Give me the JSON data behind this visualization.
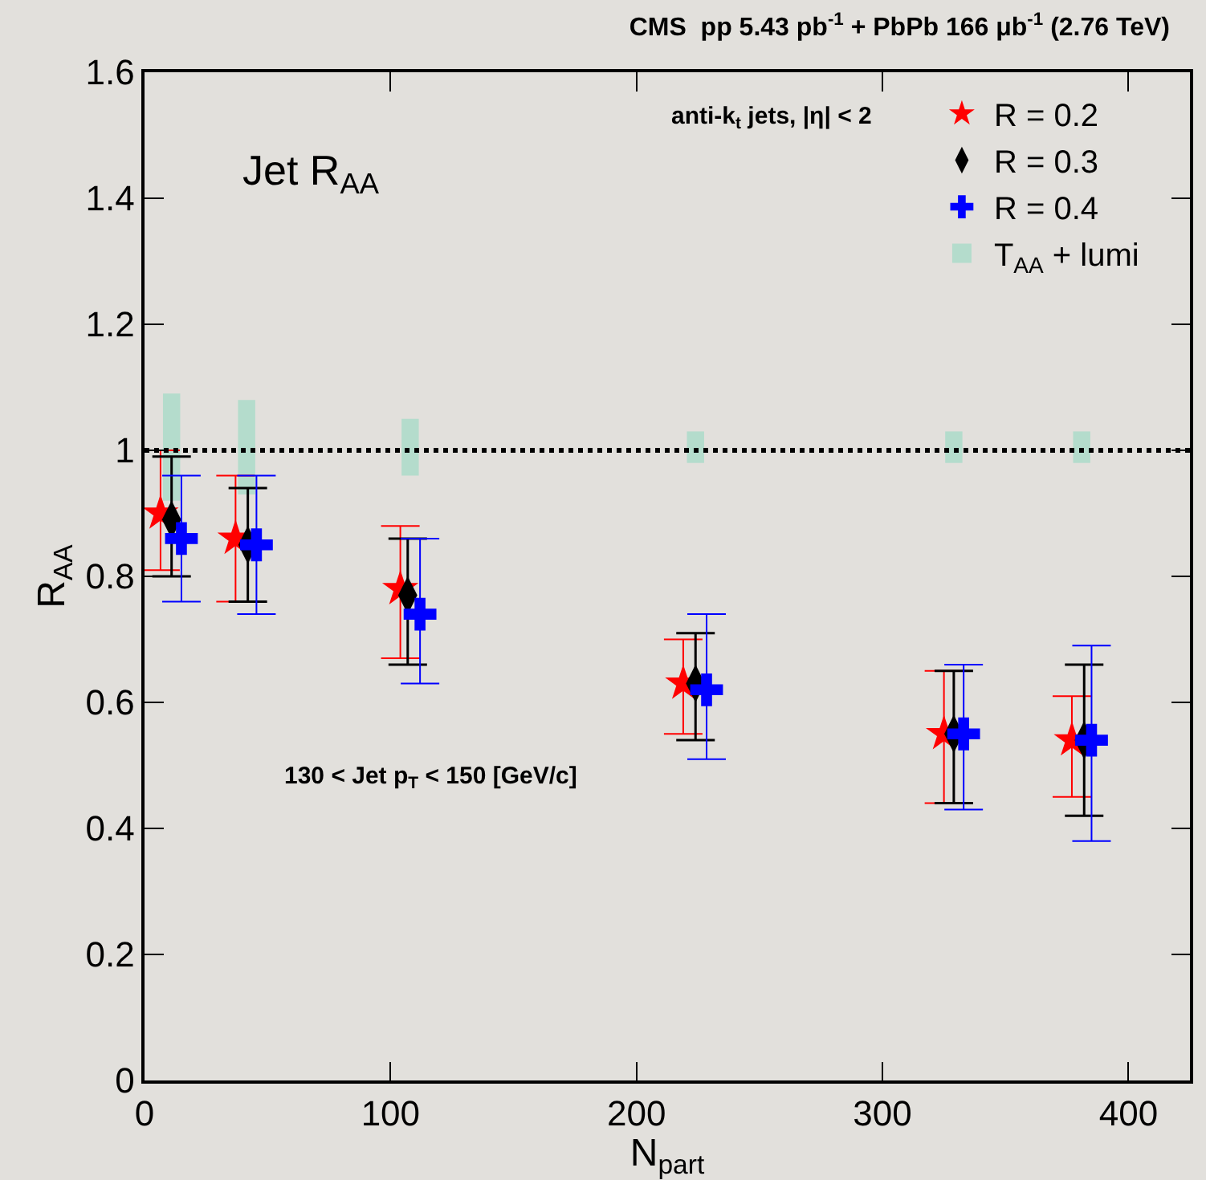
{
  "chart_data": {
    "type": "scatter",
    "title": "CMS  pp 5.43 pb$^{-1}$ + PbPb 166 μb$^{-1}$ (2.76 TeV)",
    "xlabel": "N$_{part}$",
    "ylabel": "R$_{AA}$",
    "xlim": [
      0,
      425
    ],
    "xticks": [
      0,
      100,
      200,
      300,
      400
    ],
    "ylim": [
      0,
      1.6
    ],
    "yticks": [
      0,
      0.2,
      0.4,
      0.6,
      0.8,
      1,
      1.2,
      1.4,
      1.6
    ],
    "legend": "top right",
    "grid": false,
    "ref_lines": [
      {
        "axis": "y",
        "value": 1,
        "color": "#000000",
        "line_style": "dotted"
      }
    ],
    "annotations": [
      "Jet R$_{AA}$",
      "anti-k$_{t}$ jets, |η| < 2",
      "130 < Jet p$_{T}$ < 150 [GeV/c]"
    ],
    "series": [
      {
        "name": "R = 0.2",
        "marker": "star",
        "line_style": "dotted",
        "color": "#ff0000",
        "x": [
          6.5,
          37,
          104,
          219,
          325,
          377
        ],
        "values": [
          0.9,
          0.86,
          0.78,
          0.63,
          0.55,
          0.54
        ],
        "errors": [
          [
            0.81,
            1.0
          ],
          [
            0.76,
            0.96
          ],
          [
            0.67,
            0.88
          ],
          [
            0.55,
            0.7
          ],
          [
            0.44,
            0.65
          ],
          [
            0.45,
            0.61
          ]
        ]
      },
      {
        "name": "R = 0.3",
        "marker": "diamond",
        "line_style": "solid",
        "color": "#000000",
        "x": [
          11,
          42,
          107,
          224,
          329,
          382
        ],
        "values": [
          0.89,
          0.85,
          0.77,
          0.63,
          0.55,
          0.54
        ],
        "errors": [
          [
            0.8,
            0.99
          ],
          [
            0.76,
            0.94
          ],
          [
            0.66,
            0.86
          ],
          [
            0.54,
            0.71
          ],
          [
            0.44,
            0.65
          ],
          [
            0.42,
            0.66
          ]
        ]
      },
      {
        "name": "R = 0.4",
        "marker": "cross",
        "line_style": "dashed",
        "color": "#0000ff",
        "x": [
          15,
          45.5,
          112,
          228.5,
          333,
          385
        ],
        "values": [
          0.86,
          0.85,
          0.74,
          0.62,
          0.55,
          0.54
        ],
        "errors": [
          [
            0.76,
            0.96
          ],
          [
            0.74,
            0.96
          ],
          [
            0.63,
            0.86
          ],
          [
            0.51,
            0.74
          ],
          [
            0.43,
            0.66
          ],
          [
            0.38,
            0.69
          ]
        ]
      },
      {
        "name": "T$_{AA}$ + lumi",
        "type": "bar",
        "color": "#b4dccc",
        "x": [
          11,
          41.5,
          108,
          224,
          329,
          381
        ],
        "base": [
          0.92,
          0.93,
          0.96,
          0.98,
          0.98,
          0.98
        ],
        "values": [
          0.17,
          0.15,
          0.09,
          0.05,
          0.05,
          0.05
        ]
      }
    ]
  }
}
